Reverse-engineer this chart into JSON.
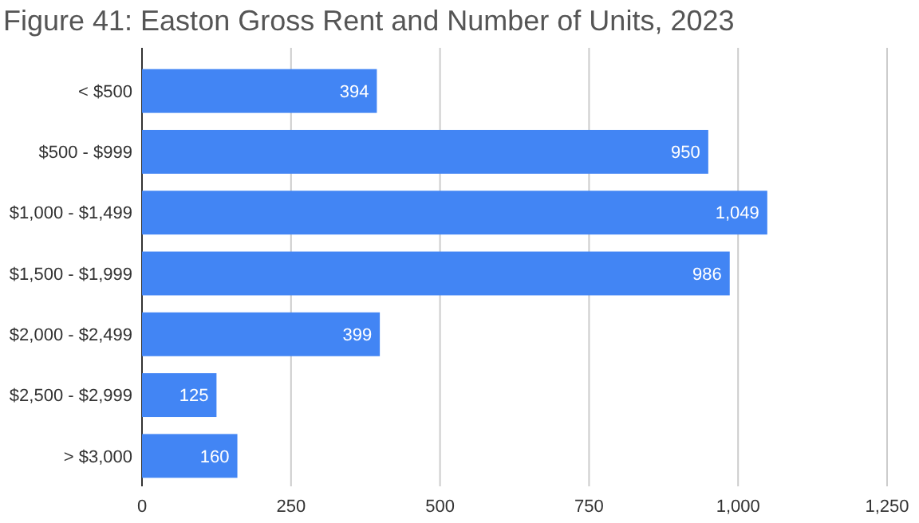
{
  "chart_data": {
    "type": "bar",
    "orientation": "horizontal",
    "title": "Figure 41: Easton Gross Rent and Number of Units, 2023",
    "categories": [
      "< $500",
      "$500 - $999",
      "$1,000 - $1,499",
      "$1,500 - $1,999",
      "$2,000 - $2,499",
      "$2,500 - $2,999",
      "> $3,000"
    ],
    "values": [
      394,
      950,
      1049,
      986,
      399,
      125,
      160
    ],
    "color": "#4285f4",
    "value_labels": [
      "394",
      "950",
      "1,049",
      "986",
      "399",
      "125",
      "160"
    ],
    "xlim": [
      0,
      1250
    ],
    "xticks": [
      0,
      250,
      500,
      750,
      {
        "value": 1000,
        "label": "1,000"
      },
      {
        "value": 1250,
        "label": "1,250"
      }
    ],
    "grid": "x"
  }
}
